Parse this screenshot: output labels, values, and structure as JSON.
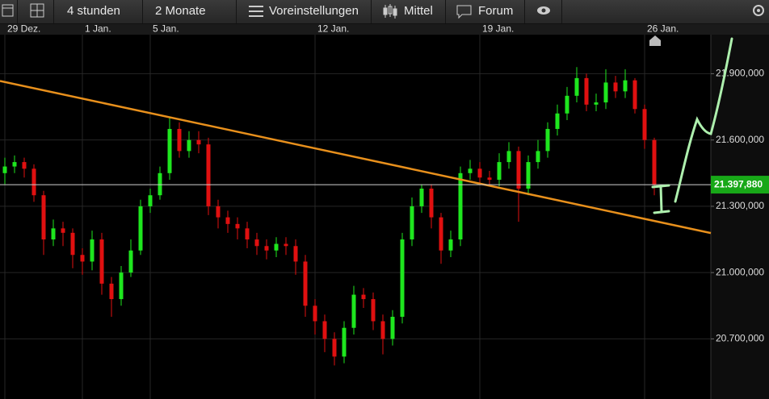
{
  "toolbar": {
    "interval": "4 stunden",
    "range": "2 Monate",
    "presets": "Voreinstellungen",
    "style": "Mittel",
    "forum": "Forum"
  },
  "chart_data": {
    "type": "candlestick",
    "categories": [
      "29 Dez.",
      null,
      null,
      null,
      null,
      null,
      null,
      null,
      "1 Jan.",
      null,
      null,
      null,
      null,
      null,
      null,
      "5 Jan.",
      null,
      null,
      null,
      null,
      null,
      null,
      null,
      null,
      null,
      null,
      null,
      null,
      null,
      null,
      null,
      null,
      "12 Jan.",
      null,
      null,
      null,
      null,
      null,
      null,
      null,
      null,
      null,
      null,
      null,
      null,
      null,
      null,
      null,
      null,
      "19 Jan.",
      null,
      null,
      null,
      null,
      null,
      null,
      null,
      null,
      null,
      null,
      null,
      null,
      null,
      null,
      null,
      null,
      "26 Jan.",
      null
    ],
    "open": [
      21450,
      21480,
      21500,
      21470,
      21350,
      21150,
      21200,
      21180,
      21080,
      21050,
      21150,
      20950,
      20880,
      21000,
      21100,
      21300,
      21350,
      21450,
      21650,
      21550,
      21600,
      21580,
      21300,
      21250,
      21220,
      21200,
      21150,
      21120,
      21100,
      21130,
      21120,
      21050,
      20850,
      20780,
      20700,
      20620,
      20750,
      20900,
      20880,
      20780,
      20700,
      20800,
      21150,
      21300,
      21380,
      21250,
      21100,
      21150,
      21450,
      21470,
      21430,
      21420,
      21500,
      21550,
      21380,
      21500,
      21550,
      21650,
      21720,
      21800,
      21880,
      21760,
      21770,
      21860,
      21820,
      21870,
      21740,
      21600
    ],
    "high": [
      21520,
      21530,
      21520,
      21490,
      21370,
      21240,
      21230,
      21200,
      21110,
      21190,
      21180,
      20980,
      21030,
      21150,
      21330,
      21380,
      21480,
      21700,
      21680,
      21640,
      21640,
      21610,
      21330,
      21280,
      21250,
      21230,
      21180,
      21150,
      21160,
      21160,
      21150,
      21080,
      20880,
      20810,
      20730,
      20780,
      20940,
      20930,
      20910,
      20810,
      20830,
      21180,
      21340,
      21400,
      21400,
      21270,
      21190,
      21480,
      21510,
      21500,
      21460,
      21540,
      21590,
      21570,
      21530,
      21600,
      21680,
      21760,
      21840,
      21930,
      21900,
      21810,
      21920,
      21890,
      21920,
      21880,
      21760,
      21610
    ],
    "low": [
      21400,
      21450,
      21430,
      21320,
      21080,
      21120,
      21120,
      21020,
      20990,
      21010,
      20900,
      20800,
      20850,
      20980,
      21080,
      21270,
      21330,
      21420,
      21520,
      21520,
      21540,
      21260,
      21200,
      21180,
      21150,
      21110,
      21080,
      21060,
      21070,
      21080,
      20990,
      20800,
      20720,
      20640,
      20580,
      20590,
      20720,
      20840,
      20740,
      20630,
      20670,
      20770,
      21120,
      21270,
      21200,
      21040,
      21070,
      21120,
      21420,
      21400,
      21390,
      21390,
      21470,
      21230,
      21350,
      21470,
      21520,
      21620,
      21690,
      21770,
      21730,
      21730,
      21740,
      21790,
      21790,
      21720,
      21560,
      21350
    ],
    "close": [
      21480,
      21500,
      21470,
      21350,
      21150,
      21200,
      21180,
      21080,
      21050,
      21150,
      20950,
      20880,
      21000,
      21100,
      21300,
      21350,
      21450,
      21650,
      21550,
      21600,
      21580,
      21300,
      21250,
      21220,
      21200,
      21150,
      21120,
      21100,
      21130,
      21120,
      21050,
      20850,
      20780,
      20700,
      20620,
      20750,
      20900,
      20880,
      20780,
      20700,
      20800,
      21150,
      21300,
      21380,
      21250,
      21100,
      21150,
      21450,
      21470,
      21430,
      21420,
      21500,
      21550,
      21380,
      21500,
      21550,
      21650,
      21720,
      21800,
      21880,
      21760,
      21770,
      21860,
      21820,
      21870,
      21740,
      21600,
      21397.88
    ],
    "up_color": "#1ee61e",
    "down_color": "#e01010",
    "ylim": [
      20428,
      22124
    ],
    "yticks": [
      {
        "value": 21900,
        "label": "21.900,000"
      },
      {
        "value": 21600,
        "label": "21.600,000"
      },
      {
        "value": 21300,
        "label": "21.300,000"
      },
      {
        "value": 21000,
        "label": "21.000,000"
      },
      {
        "value": 20700,
        "label": "20.700,000"
      }
    ],
    "last_price": {
      "value": 21397.88,
      "label": "21.397,880"
    },
    "trendline": {
      "values": [
        21867,
        21179
      ],
      "color": "#e8901c"
    },
    "grid": true
  }
}
